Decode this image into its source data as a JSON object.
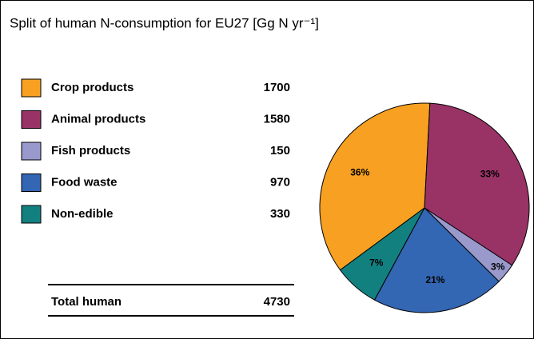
{
  "chart_data": {
    "type": "pie",
    "title": "Split of human N-consumption for EU27 [Gg N yr⁻¹]",
    "categories": [
      "Crop products",
      "Animal products",
      "Fish products",
      "Food waste",
      "Non-edible"
    ],
    "values": [
      1700,
      1580,
      150,
      970,
      330
    ],
    "colors": [
      "#f7a021",
      "#993366",
      "#9999cc",
      "#3366b3",
      "#138080"
    ],
    "shares": [
      36,
      33,
      3,
      21,
      7
    ],
    "share_labels": [
      "36%",
      "33%",
      "3%",
      "21%",
      "7%"
    ],
    "total_label": "Total human",
    "total": 4730
  }
}
